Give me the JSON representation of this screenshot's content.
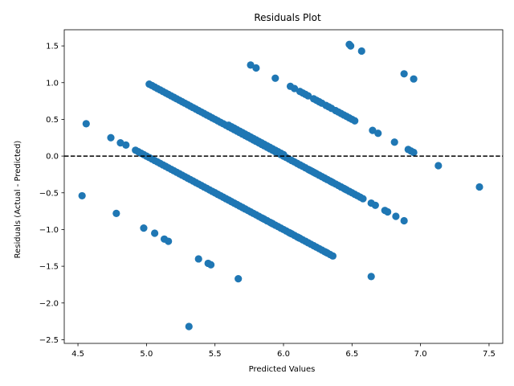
{
  "chart_data": {
    "type": "scatter",
    "title": "Residuals Plot",
    "xlabel": "Predicted Values",
    "ylabel": "Residuals (Actual - Predicted)",
    "xlim": [
      4.4,
      7.6
    ],
    "ylim": [
      -2.55,
      1.72
    ],
    "xticks": [
      4.5,
      5.0,
      5.5,
      6.0,
      6.5,
      7.0,
      7.5
    ],
    "xtick_labels": [
      "4.5",
      "5.0",
      "5.5",
      "6.0",
      "6.5",
      "7.0",
      "7.5"
    ],
    "yticks": [
      -2.5,
      -2.0,
      -1.5,
      -1.0,
      -0.5,
      0.0,
      0.5,
      1.0,
      1.5
    ],
    "ytick_labels": [
      "−2.5",
      "−2.0",
      "−1.5",
      "−1.0",
      "−0.5",
      "0.0",
      "0.5",
      "1.0",
      "1.5"
    ],
    "reference_line": {
      "y": 0,
      "style": "dashed",
      "color": "#000000"
    },
    "grid": false,
    "marker_color": "#1f77b4",
    "bands": [
      {
        "x_start": 5.02,
        "x_end": 6.52,
        "y_at_start": 0.98,
        "step": 0.02
      },
      {
        "x_start": 4.92,
        "x_end": 6.36,
        "y_at_start": 0.08,
        "step": 0.02
      },
      {
        "x_start": 5.6,
        "x_end": 6.0,
        "y_at_start": 0.42,
        "step": 0.02
      },
      {
        "x_start": 5.5,
        "x_end": 5.72,
        "y_at_start": -0.5,
        "step": 0.02
      }
    ],
    "points": [
      [
        4.56,
        0.44
      ],
      [
        4.53,
        -0.54
      ],
      [
        4.74,
        0.25
      ],
      [
        4.78,
        -0.78
      ],
      [
        4.81,
        0.18
      ],
      [
        4.85,
        0.15
      ],
      [
        4.98,
        -0.98
      ],
      [
        5.06,
        -1.05
      ],
      [
        5.13,
        -1.13
      ],
      [
        5.16,
        -1.16
      ],
      [
        5.38,
        -1.4
      ],
      [
        5.45,
        -1.46
      ],
      [
        5.47,
        -1.48
      ],
      [
        5.31,
        -2.32
      ],
      [
        5.67,
        -1.67
      ],
      [
        5.76,
        1.24
      ],
      [
        5.8,
        1.2
      ],
      [
        5.94,
        1.06
      ],
      [
        5.85,
        -0.85
      ],
      [
        5.88,
        -0.88
      ],
      [
        5.91,
        -0.91
      ],
      [
        5.92,
        -0.92
      ],
      [
        6.05,
        -1.05
      ],
      [
        6.11,
        -1.11
      ],
      [
        6.31,
        -1.31
      ],
      [
        6.05,
        0.95
      ],
      [
        6.08,
        0.92
      ],
      [
        6.12,
        0.88
      ],
      [
        6.14,
        0.86
      ],
      [
        6.16,
        0.84
      ],
      [
        6.18,
        0.82
      ],
      [
        6.22,
        0.78
      ],
      [
        6.24,
        0.76
      ],
      [
        6.26,
        0.74
      ],
      [
        6.28,
        0.72
      ],
      [
        6.31,
        0.69
      ],
      [
        6.33,
        0.67
      ],
      [
        6.35,
        0.65
      ],
      [
        6.38,
        0.62
      ],
      [
        6.4,
        0.6
      ],
      [
        6.42,
        0.58
      ],
      [
        6.44,
        0.56
      ],
      [
        6.46,
        0.54
      ],
      [
        6.48,
        0.52
      ],
      [
        6.5,
        0.5
      ],
      [
        6.52,
        0.48
      ],
      [
        6.48,
        1.52
      ],
      [
        6.49,
        1.5
      ],
      [
        6.57,
        1.43
      ],
      [
        6.65,
        0.35
      ],
      [
        6.69,
        0.31
      ],
      [
        6.81,
        0.19
      ],
      [
        6.88,
        1.12
      ],
      [
        6.95,
        1.05
      ],
      [
        6.91,
        0.09
      ],
      [
        6.93,
        0.07
      ],
      [
        6.95,
        0.05
      ],
      [
        7.13,
        -0.13
      ],
      [
        7.43,
        -0.42
      ],
      [
        6.06,
        -0.06
      ],
      [
        6.1,
        -0.1
      ],
      [
        6.12,
        -0.12
      ],
      [
        6.19,
        -0.19
      ],
      [
        6.21,
        -0.21
      ],
      [
        6.23,
        -0.23
      ],
      [
        6.26,
        -0.26
      ],
      [
        6.28,
        -0.28
      ],
      [
        6.3,
        -0.3
      ],
      [
        6.32,
        -0.32
      ],
      [
        6.35,
        -0.35
      ],
      [
        6.42,
        -0.42
      ],
      [
        6.45,
        -0.45
      ],
      [
        6.54,
        -0.54
      ],
      [
        6.56,
        -0.56
      ],
      [
        6.58,
        -0.58
      ],
      [
        6.64,
        -0.64
      ],
      [
        6.67,
        -0.67
      ],
      [
        6.74,
        -0.74
      ],
      [
        6.76,
        -0.76
      ],
      [
        6.82,
        -0.82
      ],
      [
        6.88,
        -0.88
      ],
      [
        6.64,
        -1.64
      ]
    ]
  }
}
